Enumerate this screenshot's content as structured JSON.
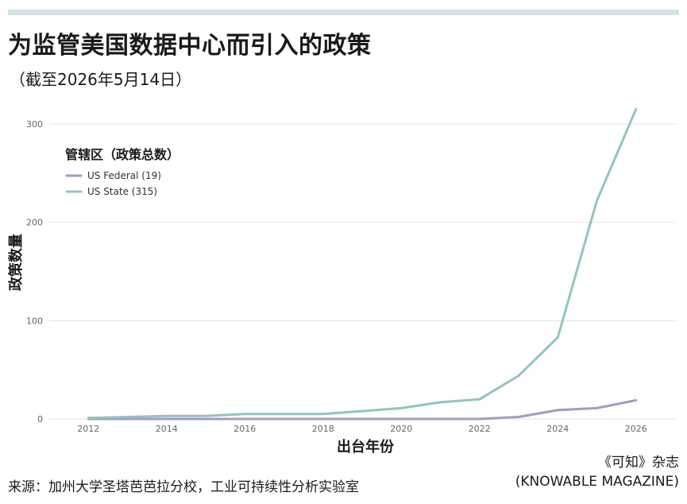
{
  "header": {
    "title": "为监管美国数据中心而引入的政策",
    "subtitle": "（截至2026年5月14日）"
  },
  "footer": {
    "source": "来源：加州大学圣塔芭芭拉分校，工业可持续性分析实验室",
    "credit_line1": "《可知》杂志",
    "credit_line2": "(KNOWABLE MAGAZINE)"
  },
  "colors": {
    "background": "#ffffff",
    "top_bar": "#d5e3e6",
    "grid": "#e3e3e3",
    "axis_text": "#666666",
    "federal": "#a59ac4",
    "state": "#93c4c1"
  },
  "chart_data": {
    "type": "line",
    "title": "",
    "xlabel": "出台年份",
    "ylabel": "政策数量",
    "xlim": [
      2011,
      2027
    ],
    "ylim": [
      0,
      300
    ],
    "x_ticks": [
      "2012",
      "2014",
      "2016",
      "2018",
      "2020",
      "2022",
      "2024",
      "2026"
    ],
    "y_ticks": [
      "0",
      "100",
      "200",
      "300"
    ],
    "grid": "horizontal",
    "legend": {
      "title": "管辖区（政策总数）",
      "placement": "upper-left",
      "entries": [
        "US Federal (19)",
        "US State (315)"
      ]
    },
    "x": [
      2012,
      2013,
      2014,
      2015,
      2016,
      2017,
      2018,
      2019,
      2020,
      2021,
      2022,
      2023,
      2024,
      2025,
      2026
    ],
    "series": [
      {
        "name": "US Federal (19)",
        "color": "#a59ac4",
        "values": [
          0,
          0,
          0,
          0,
          0,
          0,
          0,
          0,
          0,
          0,
          0,
          2,
          9,
          11,
          19
        ]
      },
      {
        "name": "US State (315)",
        "color": "#93c4c1",
        "values": [
          1,
          2,
          3,
          3,
          5,
          5,
          5,
          8,
          11,
          17,
          20,
          44,
          83,
          222,
          315
        ]
      }
    ]
  }
}
